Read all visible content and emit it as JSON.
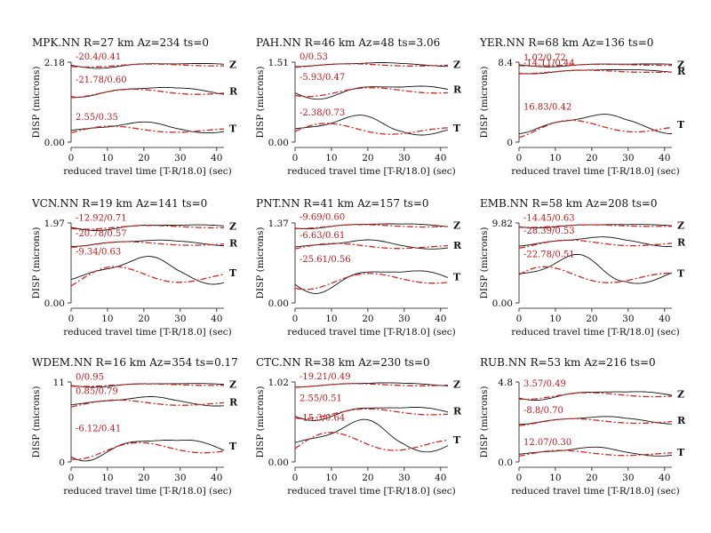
{
  "colors": {
    "observed": "#111111",
    "synthetic": "#d8261f",
    "annotation": "#c0181c"
  },
  "chart_data": [
    {
      "type": "line",
      "title": "MPK.NN R=27 km Az=234 ts=0",
      "ylabel": "DISP (microns)",
      "xlabel": "reduced travel time [T-R/18.0] (sec)",
      "xticks": [
        0,
        10,
        20,
        30,
        40
      ],
      "xlim": [
        0,
        42
      ],
      "ylim": [
        0,
        2.18
      ],
      "yticks": [
        "0.00",
        "2.18"
      ],
      "components": [
        {
          "name": "Z",
          "annotation": "-20.4/0.41"
        },
        {
          "name": "R",
          "annotation": "-21.78/0.60"
        },
        {
          "name": "T",
          "annotation": "2.55/0.35"
        }
      ]
    },
    {
      "type": "line",
      "title": "PAH.NN R=46 km Az=48 ts=3.06",
      "ylabel": "DISP (microns)",
      "xlabel": "reduced travel time [T-R/18.0] (sec)",
      "xticks": [
        0,
        10,
        20,
        30,
        40
      ],
      "xlim": [
        0,
        42
      ],
      "ylim": [
        0,
        1.51
      ],
      "yticks": [
        "0.00",
        "1.51"
      ],
      "components": [
        {
          "name": "Z",
          "annotation": "0/0.53"
        },
        {
          "name": "R",
          "annotation": "-5.93/0.47"
        },
        {
          "name": "T",
          "annotation": "-2.38/0.73"
        }
      ]
    },
    {
      "type": "line",
      "title": "YER.NN R=68 km Az=136 ts=0",
      "ylabel": "DISP (microns)",
      "xlabel": "reduced travel time [T-R/18.0] (sec)",
      "xticks": [
        0,
        10,
        20,
        30,
        40
      ],
      "xlim": [
        0,
        42
      ],
      "ylim": [
        0,
        8.4
      ],
      "yticks": [
        "0",
        "8.4"
      ],
      "components": [
        {
          "name": "Z",
          "annotation": "1.02/0.72"
        },
        {
          "name": "R",
          "annotation": "-14.11/0.44"
        },
        {
          "name": "T",
          "annotation": "16.83/0.42"
        }
      ]
    },
    {
      "type": "line",
      "title": "VCN.NN R=19 km Az=141 ts=0",
      "ylabel": "DISP (microns)",
      "xlabel": "reduced travel time [T-R/18.0] (sec)",
      "xticks": [
        0,
        10,
        20,
        30,
        40
      ],
      "xlim": [
        0,
        42
      ],
      "ylim": [
        0,
        1.97
      ],
      "yticks": [
        "0.00",
        "1.97"
      ],
      "components": [
        {
          "name": "Z",
          "annotation": "-12.92/0.71"
        },
        {
          "name": "R",
          "annotation": "-20.78/0.57"
        },
        {
          "name": "T",
          "annotation": "-9.34/0.63"
        }
      ]
    },
    {
      "type": "line",
      "title": "PNT.NN R=41 km Az=157 ts=0",
      "ylabel": "DISP (microns)",
      "xlabel": "reduced travel time [T-R/18.0] (sec)",
      "xticks": [
        0,
        10,
        20,
        30,
        40
      ],
      "xlim": [
        0,
        42
      ],
      "ylim": [
        0,
        1.37
      ],
      "yticks": [
        "0.00",
        "1.37"
      ],
      "components": [
        {
          "name": "Z",
          "annotation": "-9.69/0.60"
        },
        {
          "name": "R",
          "annotation": "-6.63/0.61"
        },
        {
          "name": "T",
          "annotation": "-25.61/0.56"
        }
      ]
    },
    {
      "type": "line",
      "title": "EMB.NN R=58 km Az=208 ts=0",
      "ylabel": "DISP (microns)",
      "xlabel": "reduced travel time [T-R/18.0] (sec)",
      "xticks": [
        0,
        10,
        20,
        30,
        40
      ],
      "xlim": [
        0,
        42
      ],
      "ylim": [
        0,
        9.82
      ],
      "yticks": [
        "0.00",
        "9.82"
      ],
      "components": [
        {
          "name": "Z",
          "annotation": "-14.45/0.63"
        },
        {
          "name": "R",
          "annotation": "-28.39/0.53"
        },
        {
          "name": "T",
          "annotation": "-22.78/0.51"
        }
      ]
    },
    {
      "type": "line",
      "title": "WDEM.NN R=16 km Az=354 ts=0.17",
      "ylabel": "DISP (microns)",
      "xlabel": "reduced travel time [T-R/18.0] (sec)",
      "xticks": [
        0,
        10,
        20,
        30,
        40
      ],
      "xlim": [
        0,
        42
      ],
      "ylim": [
        0,
        11
      ],
      "yticks": [
        "0",
        "11"
      ],
      "components": [
        {
          "name": "Z",
          "annotation": "0/0.95"
        },
        {
          "name": "R",
          "annotation": "0.85/0.79"
        },
        {
          "name": "T",
          "annotation": "-6.12/0.41"
        }
      ]
    },
    {
      "type": "line",
      "title": "CTC.NN R=38 km Az=230 ts=0",
      "ylabel": "DISP (microns)",
      "xlabel": "reduced travel time [T-R/18.0] (sec)",
      "xticks": [
        0,
        10,
        20,
        30,
        40
      ],
      "xlim": [
        0,
        42
      ],
      "ylim": [
        0,
        1.02
      ],
      "yticks": [
        "0.00",
        "1.02"
      ],
      "components": [
        {
          "name": "Z",
          "annotation": "-19.21/0.49"
        },
        {
          "name": "R",
          "annotation": "2.55/0.51"
        },
        {
          "name": "T",
          "annotation": "-15.3/0.64"
        }
      ]
    },
    {
      "type": "line",
      "title": "RUB.NN R=53 km Az=216 ts=0",
      "ylabel": "DISP (microns)",
      "xlabel": "reduced travel time [T-R/18.0] (sec)",
      "xticks": [
        0,
        10,
        20,
        30,
        40
      ],
      "xlim": [
        0,
        42
      ],
      "ylim": [
        0,
        4.8
      ],
      "yticks": [
        "0.0",
        "4.8"
      ],
      "components": [
        {
          "name": "Z",
          "annotation": "3.57/0.49"
        },
        {
          "name": "R",
          "annotation": "-8.8/0.70"
        },
        {
          "name": "T",
          "annotation": "12.07/0.30"
        }
      ]
    }
  ]
}
